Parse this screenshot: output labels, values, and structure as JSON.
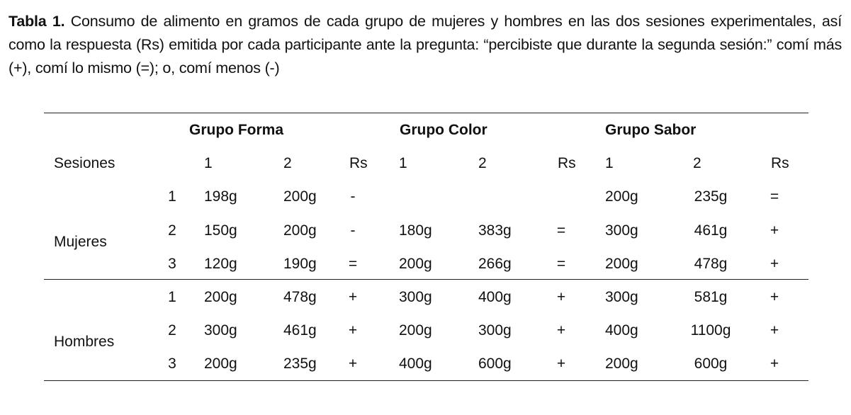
{
  "caption": {
    "label": "Tabla 1.",
    "text": "Consumo de alimento en gramos de cada grupo de mujeres y hombres en las dos sesiones experimentales, así como la respuesta (Rs) emitida por cada participante ante la pregunta: “percibiste que durante la segunda sesión:” comí más (+), comí lo mismo (=); o, comí menos (-)"
  },
  "table": {
    "groups": [
      "Grupo Forma",
      "Grupo Color",
      "Grupo Sabor"
    ],
    "sessions_label": "Sesiones",
    "subheaders": [
      "1",
      "2",
      "Rs",
      "1",
      "2",
      "Rs",
      "1",
      "2",
      "Rs"
    ],
    "sections": [
      {
        "label": "Mujeres",
        "rows": [
          {
            "participant": "1",
            "cells": [
              "198g",
              "200g",
              "-",
              "",
              "",
              "",
              "200g",
              "235g",
              "="
            ]
          },
          {
            "participant": "2",
            "cells": [
              "150g",
              "200g",
              "-",
              "180g",
              "383g",
              "=",
              "300g",
              "461g",
              "+"
            ]
          },
          {
            "participant": "3",
            "cells": [
              "120g",
              "190g",
              "=",
              "200g",
              "266g",
              "=",
              "200g",
              "478g",
              "+"
            ]
          }
        ]
      },
      {
        "label": "Hombres",
        "rows": [
          {
            "participant": "1",
            "cells": [
              "200g",
              "478g",
              "+",
              "300g",
              "400g",
              "+",
              "300g",
              "581g",
              "+"
            ]
          },
          {
            "participant": "2",
            "cells": [
              "300g",
              "461g",
              "+",
              "200g",
              "300g",
              "+",
              "400g",
              "1100g",
              "+"
            ]
          },
          {
            "participant": "3",
            "cells": [
              "200g",
              "235g",
              "+",
              "400g",
              "600g",
              "+",
              "200g",
              "600g",
              "+"
            ]
          }
        ]
      }
    ]
  }
}
